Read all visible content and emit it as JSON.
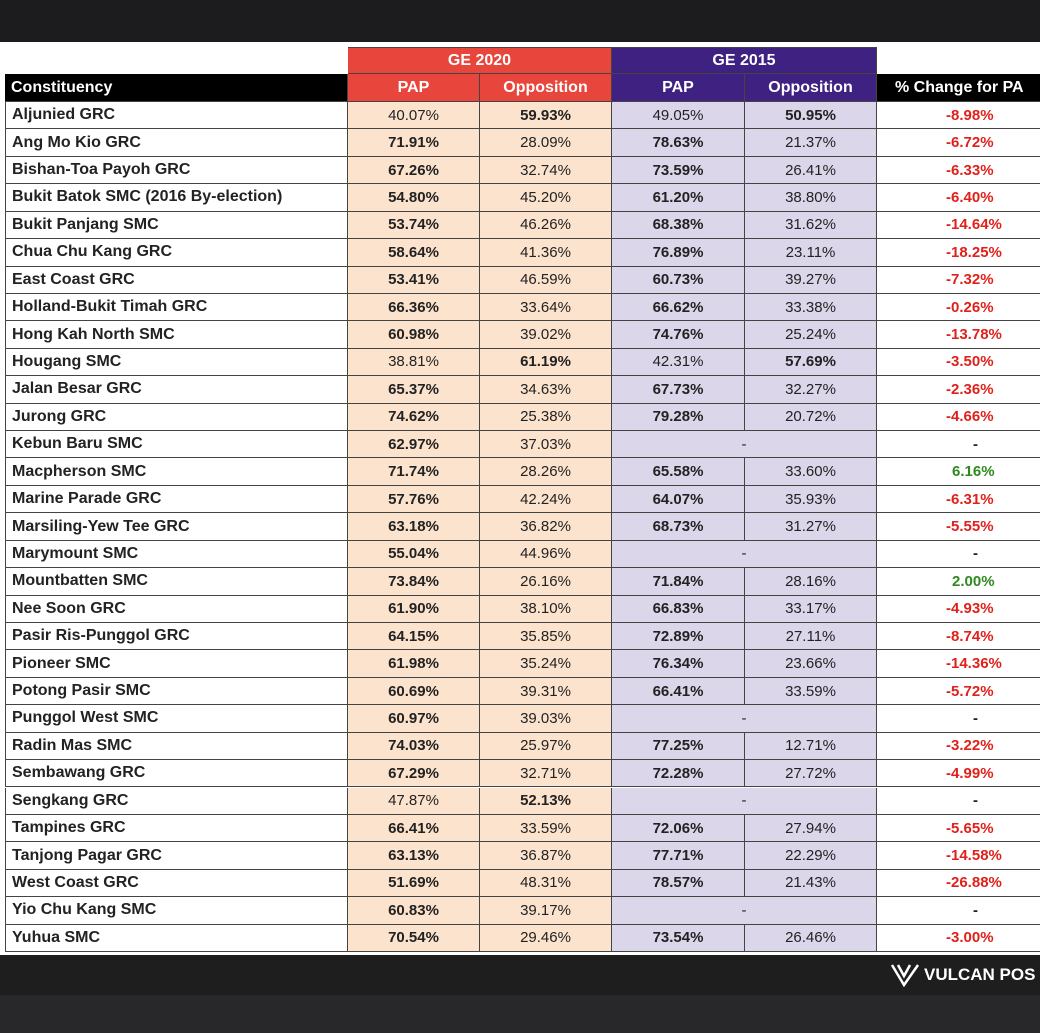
{
  "header": {
    "groups": [
      "GE 2020",
      "GE 2015"
    ],
    "columns": [
      "Constituency",
      "PAP",
      "Opposition",
      "PAP",
      "Opposition",
      "% Change for PA"
    ]
  },
  "table": {
    "rows": [
      {
        "constituency": "Aljunied GRC",
        "ge2020": [
          "40.07%",
          "59.93%"
        ],
        "ge2015": [
          "49.05%",
          "50.95%"
        ],
        "change": "-8.98%"
      },
      {
        "constituency": "Ang Mo Kio GRC",
        "ge2020": [
          "71.91%",
          "28.09%"
        ],
        "ge2015": [
          "78.63%",
          "21.37%"
        ],
        "change": "-6.72%"
      },
      {
        "constituency": "Bishan-Toa Payoh GRC",
        "ge2020": [
          "67.26%",
          "32.74%"
        ],
        "ge2015": [
          "73.59%",
          "26.41%"
        ],
        "change": "-6.33%"
      },
      {
        "constituency": "Bukit Batok SMC (2016 By-election)",
        "ge2020": [
          "54.80%",
          "45.20%"
        ],
        "ge2015": [
          "61.20%",
          "38.80%"
        ],
        "change": "-6.40%"
      },
      {
        "constituency": "Bukit Panjang SMC",
        "ge2020": [
          "53.74%",
          "46.26%"
        ],
        "ge2015": [
          "68.38%",
          "31.62%"
        ],
        "change": "-14.64%"
      },
      {
        "constituency": "Chua Chu Kang GRC",
        "ge2020": [
          "58.64%",
          "41.36%"
        ],
        "ge2015": [
          "76.89%",
          "23.11%"
        ],
        "change": "-18.25%"
      },
      {
        "constituency": "East Coast GRC",
        "ge2020": [
          "53.41%",
          "46.59%"
        ],
        "ge2015": [
          "60.73%",
          "39.27%"
        ],
        "change": "-7.32%"
      },
      {
        "constituency": "Holland-Bukit Timah GRC",
        "ge2020": [
          "66.36%",
          "33.64%"
        ],
        "ge2015": [
          "66.62%",
          "33.38%"
        ],
        "change": "-0.26%"
      },
      {
        "constituency": "Hong Kah North SMC",
        "ge2020": [
          "60.98%",
          "39.02%"
        ],
        "ge2015": [
          "74.76%",
          "25.24%"
        ],
        "change": "-13.78%"
      },
      {
        "constituency": "Hougang SMC",
        "ge2020": [
          "38.81%",
          "61.19%"
        ],
        "ge2015": [
          "42.31%",
          "57.69%"
        ],
        "change": "-3.50%"
      },
      {
        "constituency": "Jalan Besar GRC",
        "ge2020": [
          "65.37%",
          "34.63%"
        ],
        "ge2015": [
          "67.73%",
          "32.27%"
        ],
        "change": "-2.36%"
      },
      {
        "constituency": "Jurong GRC",
        "ge2020": [
          "74.62%",
          "25.38%"
        ],
        "ge2015": [
          "79.28%",
          "20.72%"
        ],
        "change": "-4.66%"
      },
      {
        "constituency": "Kebun Baru SMC",
        "ge2020": [
          "62.97%",
          "37.03%"
        ],
        "ge2015": "-",
        "change": "-"
      },
      {
        "constituency": "Macpherson SMC",
        "ge2020": [
          "71.74%",
          "28.26%"
        ],
        "ge2015": [
          "65.58%",
          "33.60%"
        ],
        "change": "6.16%"
      },
      {
        "constituency": "Marine Parade GRC",
        "ge2020": [
          "57.76%",
          "42.24%"
        ],
        "ge2015": [
          "64.07%",
          "35.93%"
        ],
        "change": "-6.31%"
      },
      {
        "constituency": "Marsiling-Yew Tee GRC",
        "ge2020": [
          "63.18%",
          "36.82%"
        ],
        "ge2015": [
          "68.73%",
          "31.27%"
        ],
        "change": "-5.55%"
      },
      {
        "constituency": "Marymount SMC",
        "ge2020": [
          "55.04%",
          "44.96%"
        ],
        "ge2015": "-",
        "change": "-"
      },
      {
        "constituency": "Mountbatten SMC",
        "ge2020": [
          "73.84%",
          "26.16%"
        ],
        "ge2015": [
          "71.84%",
          "28.16%"
        ],
        "change": "2.00%"
      },
      {
        "constituency": "Nee Soon GRC",
        "ge2020": [
          "61.90%",
          "38.10%"
        ],
        "ge2015": [
          "66.83%",
          "33.17%"
        ],
        "change": "-4.93%"
      },
      {
        "constituency": "Pasir Ris-Punggol GRC",
        "ge2020": [
          "64.15%",
          "35.85%"
        ],
        "ge2015": [
          "72.89%",
          "27.11%"
        ],
        "change": "-8.74%"
      },
      {
        "constituency": "Pioneer SMC",
        "ge2020": [
          "61.98%",
          "35.24%"
        ],
        "ge2015": [
          "76.34%",
          "23.66%"
        ],
        "change": "-14.36%"
      },
      {
        "constituency": "Potong Pasir SMC",
        "ge2020": [
          "60.69%",
          "39.31%"
        ],
        "ge2015": [
          "66.41%",
          "33.59%"
        ],
        "change": "-5.72%"
      },
      {
        "constituency": "Punggol West SMC",
        "ge2020": [
          "60.97%",
          "39.03%"
        ],
        "ge2015": "-",
        "change": "-"
      },
      {
        "constituency": "Radin Mas SMC",
        "ge2020": [
          "74.03%",
          "25.97%"
        ],
        "ge2015": [
          "77.25%",
          "12.71%"
        ],
        "change": "-3.22%"
      },
      {
        "constituency": "Sembawang GRC",
        "ge2020": [
          "67.29%",
          "32.71%"
        ],
        "ge2015": [
          "72.28%",
          "27.72%"
        ],
        "change": "-4.99%"
      },
      {
        "constituency": "Sengkang GRC",
        "ge2020": [
          "47.87%",
          "52.13%"
        ],
        "ge2015": "-",
        "change": "-"
      },
      {
        "constituency": "Tampines GRC",
        "ge2020": [
          "66.41%",
          "33.59%"
        ],
        "ge2015": [
          "72.06%",
          "27.94%"
        ],
        "change": "-5.65%"
      },
      {
        "constituency": "Tanjong Pagar GRC",
        "ge2020": [
          "63.13%",
          "36.87%"
        ],
        "ge2015": [
          "77.71%",
          "22.29%"
        ],
        "change": "-14.58%"
      },
      {
        "constituency": "West Coast GRC",
        "ge2020": [
          "51.69%",
          "48.31%"
        ],
        "ge2015": [
          "78.57%",
          "21.43%"
        ],
        "change": "-26.88%"
      },
      {
        "constituency": "Yio Chu Kang SMC",
        "ge2020": [
          "60.83%",
          "39.17%"
        ],
        "ge2015": "-",
        "change": "-"
      },
      {
        "constituency": "Yuhua SMC",
        "ge2020": [
          "70.54%",
          "29.46%"
        ],
        "ge2015": [
          "73.54%",
          "26.46%"
        ],
        "change": "-3.00%"
      }
    ]
  },
  "footer": {
    "logo": "VULCAN POS"
  }
}
